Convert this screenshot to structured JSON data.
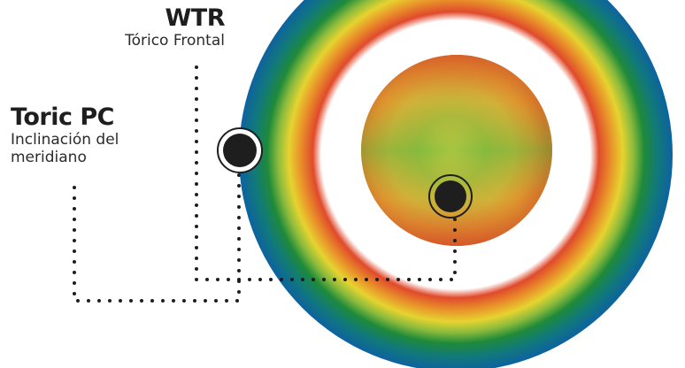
{
  "labels": {
    "wtr": {
      "title": "WTR",
      "subtitle": "Tórico Frontal"
    },
    "toric_pc": {
      "title": "Toric PC",
      "subtitle_line1": "Inclinación del",
      "subtitle_line2": "meridiano"
    }
  },
  "colors": {
    "outer_ring_edge": "#0d6fa0",
    "ring_green": "#1f8a3a",
    "ring_yellow": "#e3cf2a",
    "ring_orange": "#e8701e",
    "ring_red": "#dd3b2b",
    "inner_sphere_green": "#79b33b",
    "inner_sphere_orange": "#db6a22",
    "marker_fill": "#1e1e1e",
    "leader_dots": "#1e1e1e"
  },
  "icons": {
    "marker": "filled-circle-with-ring"
  }
}
